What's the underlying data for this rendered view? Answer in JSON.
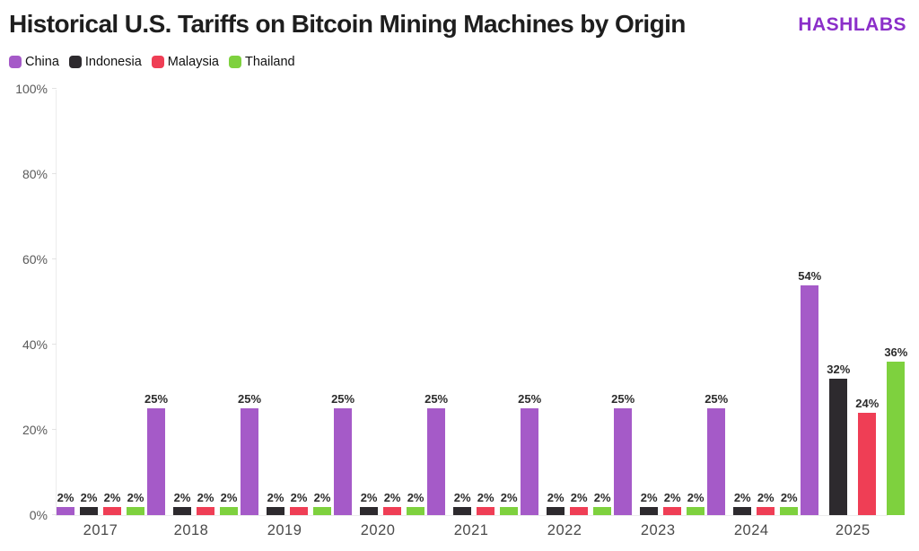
{
  "header": {
    "title": "Historical U.S. Tariffs on Bitcoin Mining Machines by Origin",
    "brand": "HASHLABS"
  },
  "colors": {
    "brand": "#8b2fc9",
    "title_text": "#1e1e1e",
    "axis_line": "#ececec",
    "tick_text": "#5a5a5a",
    "year_text": "#4a4a4a",
    "value_label_text": "#2b2b2b"
  },
  "chart_data": {
    "type": "bar",
    "title": "Historical U.S. Tariffs on Bitcoin Mining Machines by Origin",
    "categories": [
      "2017",
      "2018",
      "2019",
      "2020",
      "2021",
      "2022",
      "2023",
      "2024",
      "2025"
    ],
    "series": [
      {
        "name": "China",
        "color": "#a55ac8",
        "values": [
          2,
          25,
          25,
          25,
          25,
          25,
          25,
          25,
          54
        ]
      },
      {
        "name": "Indonesia",
        "color": "#2d2a2e",
        "values": [
          2,
          2,
          2,
          2,
          2,
          2,
          2,
          2,
          32
        ]
      },
      {
        "name": "Malaysia",
        "color": "#ef3e55",
        "values": [
          2,
          2,
          2,
          2,
          2,
          2,
          2,
          2,
          24
        ]
      },
      {
        "name": "Thailand",
        "color": "#7ed13e",
        "values": [
          2,
          2,
          2,
          2,
          2,
          2,
          2,
          2,
          36
        ]
      }
    ],
    "xlabel": "",
    "ylabel": "",
    "ylim": [
      0,
      100
    ],
    "y_ticks": [
      {
        "value": 0,
        "label": "0%"
      },
      {
        "value": 20,
        "label": "20%"
      },
      {
        "value": 40,
        "label": "40%"
      },
      {
        "value": 60,
        "label": "60%"
      },
      {
        "value": 80,
        "label": "80%"
      },
      {
        "value": 100,
        "label": "100%"
      }
    ],
    "grid": false,
    "legend_position": "top-left",
    "value_label_suffix": "%"
  }
}
